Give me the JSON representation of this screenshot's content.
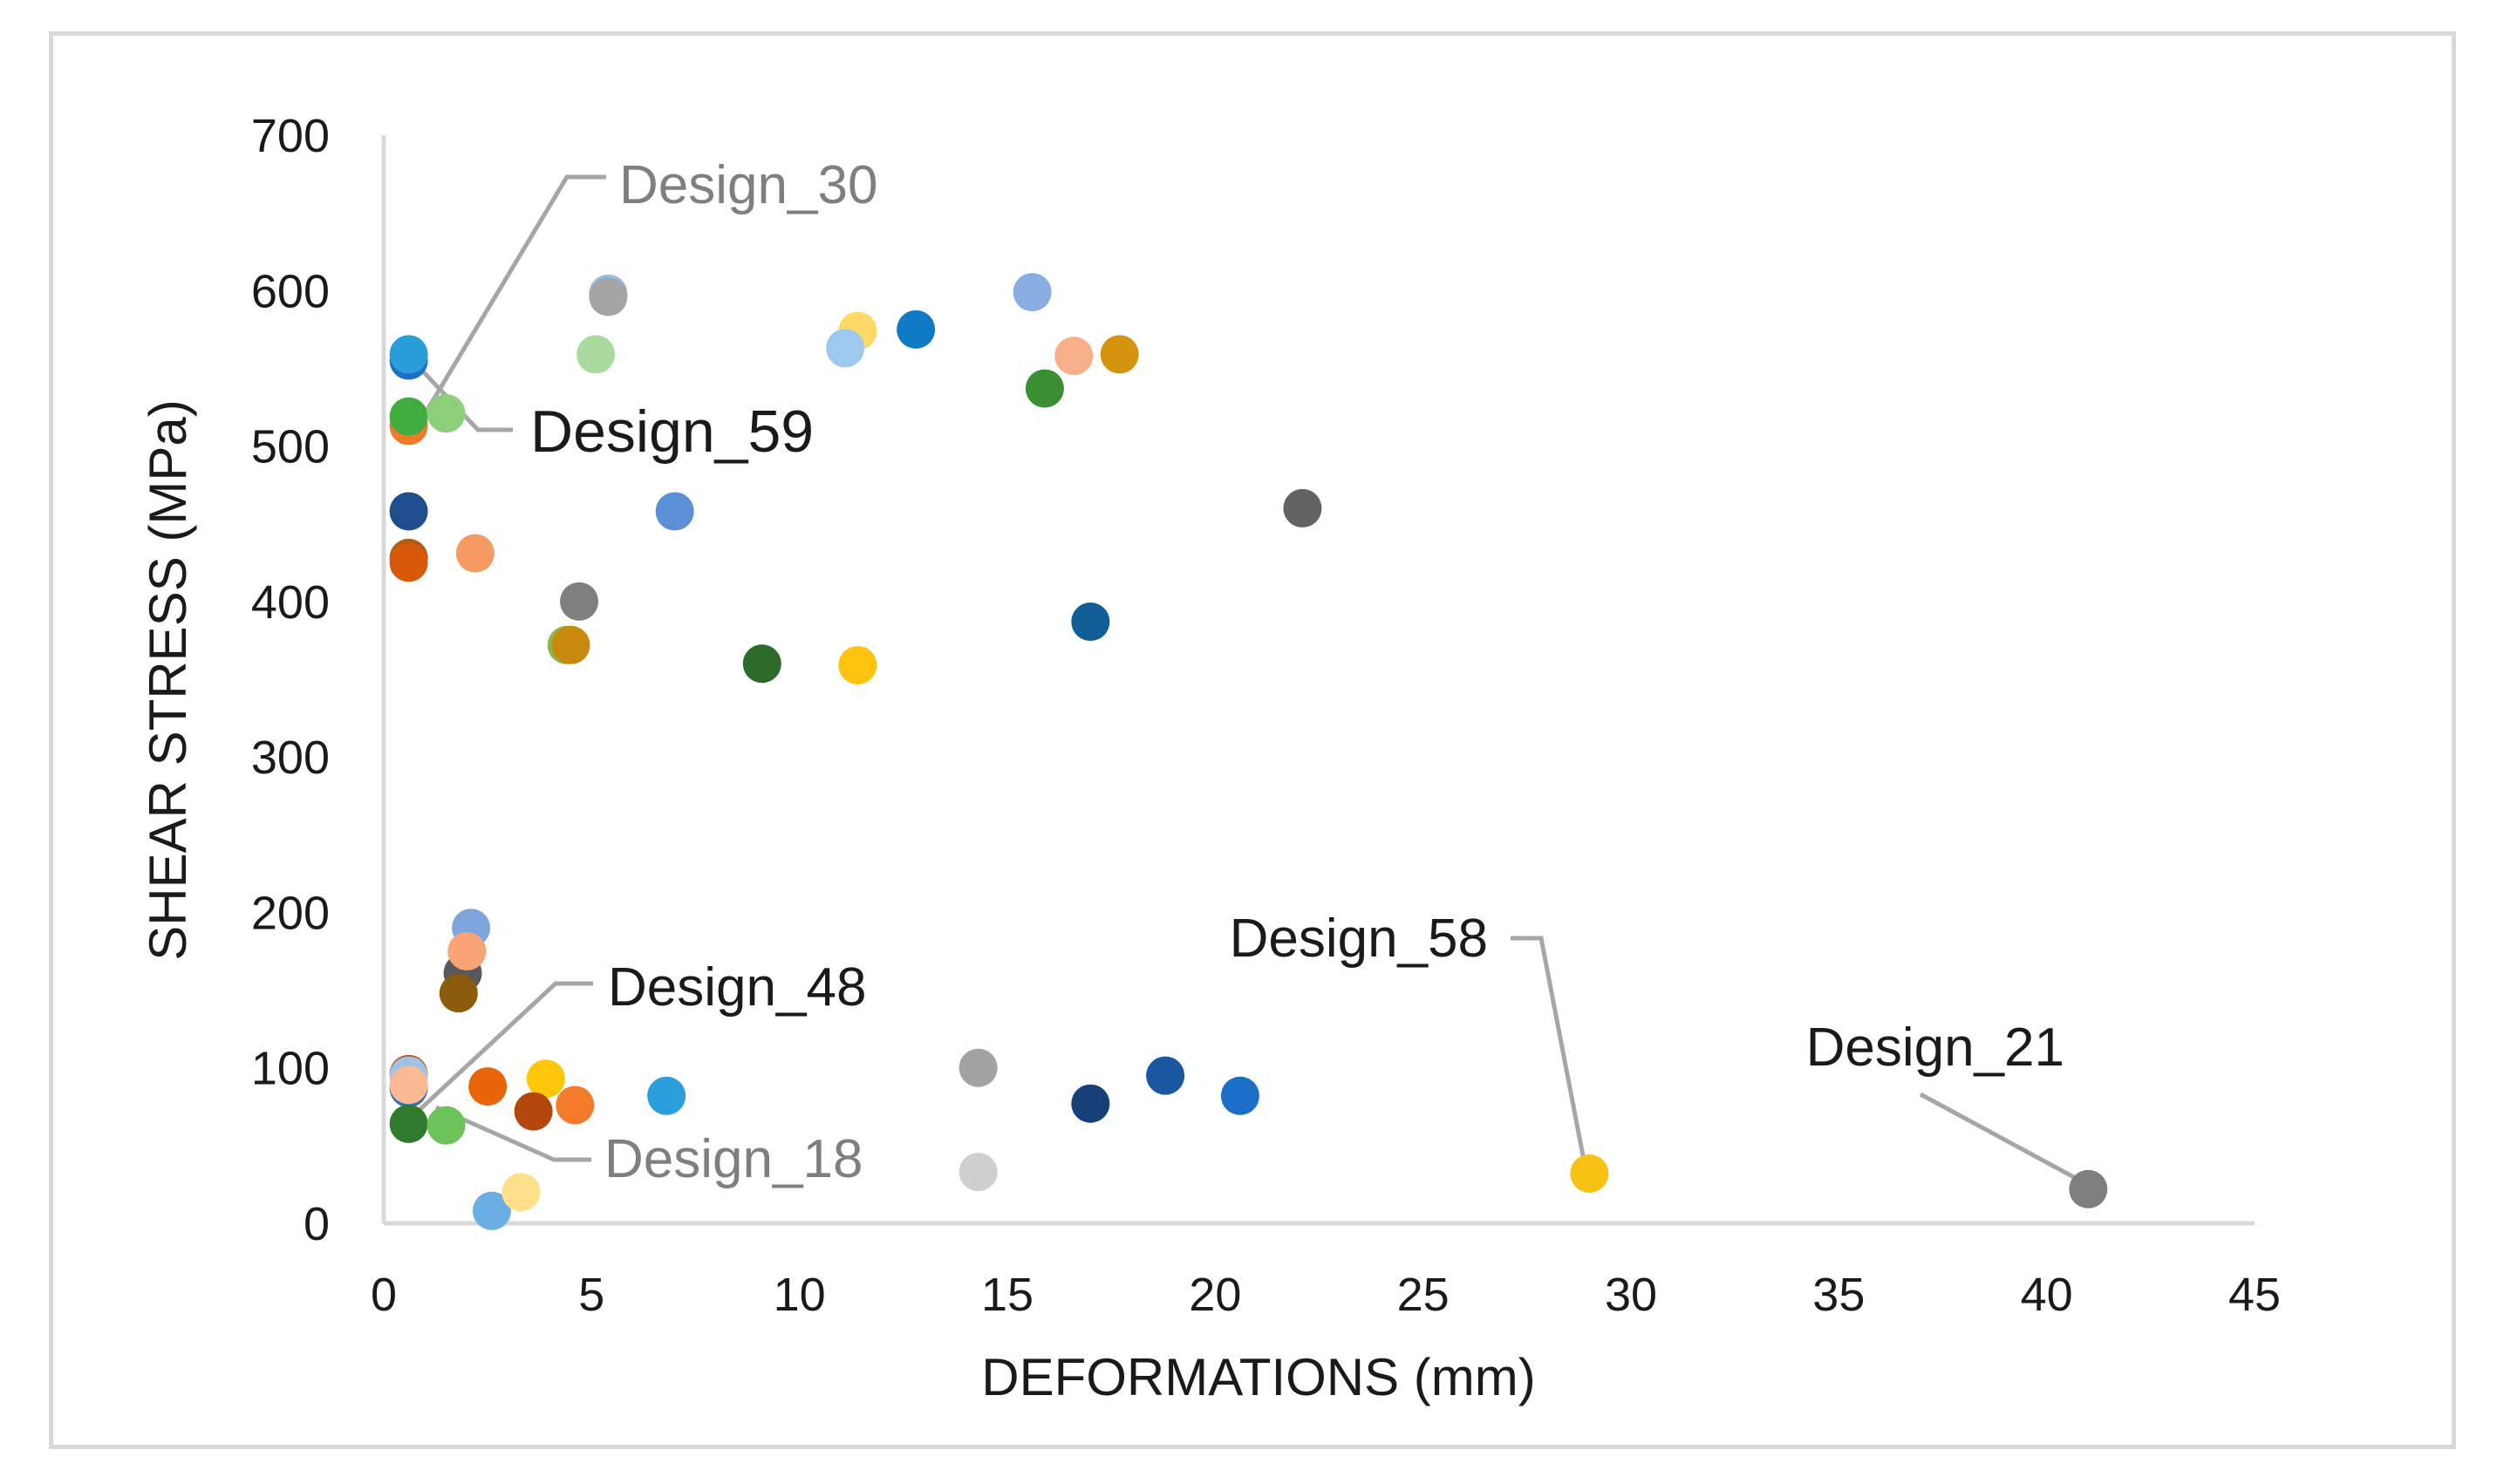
{
  "chart_data": {
    "type": "scatter",
    "title": "",
    "xlabel": "DEFORMATIONS (mm)",
    "ylabel": "SHEAR  STRESS   (MPa)",
    "xlim": [
      0,
      45
    ],
    "ylim": [
      0,
      700
    ],
    "xticks": [
      "0",
      "5",
      "10",
      "15",
      "20",
      "25",
      "30",
      "35",
      "40",
      "45"
    ],
    "yticks": [
      "0",
      "100",
      "200",
      "300",
      "400",
      "500",
      "600",
      "700"
    ],
    "grid": false,
    "legend": "none",
    "points": [
      {
        "x": 0.6,
        "y": 555,
        "color": "#1f6fc8"
      },
      {
        "x": 0.6,
        "y": 559,
        "color": "#2a9ed8"
      },
      {
        "x": 0.6,
        "y": 513,
        "color": "#ef7a2a"
      },
      {
        "x": 0.6,
        "y": 519,
        "color": "#3fae3f"
      },
      {
        "x": 1.5,
        "y": 521,
        "color": "#8ed07a"
      },
      {
        "x": 0.6,
        "y": 458,
        "color": "#1f4e8f"
      },
      {
        "x": 0.6,
        "y": 428,
        "color": "#b35a13"
      },
      {
        "x": 0.6,
        "y": 425,
        "color": "#d95a0b"
      },
      {
        "x": 2.2,
        "y": 431,
        "color": "#f79a62"
      },
      {
        "x": 5.4,
        "y": 598,
        "color": "#8fbde6"
      },
      {
        "x": 5.4,
        "y": 596,
        "color": "#a5a5a5"
      },
      {
        "x": 5.1,
        "y": 559,
        "color": "#a9dc9c"
      },
      {
        "x": 7.0,
        "y": 458,
        "color": "#5b8fd6"
      },
      {
        "x": 4.7,
        "y": 400,
        "color": "#7f7f7f"
      },
      {
        "x": 4.4,
        "y": 372,
        "color": "#8ab84a"
      },
      {
        "x": 4.5,
        "y": 372,
        "color": "#c88a0e"
      },
      {
        "x": 9.1,
        "y": 360,
        "color": "#2e6b2a"
      },
      {
        "x": 11.4,
        "y": 574,
        "color": "#ffd966"
      },
      {
        "x": 11.1,
        "y": 563,
        "color": "#9dc9ee"
      },
      {
        "x": 12.8,
        "y": 575,
        "color": "#0f7ac6"
      },
      {
        "x": 11.4,
        "y": 359,
        "color": "#fcc30f"
      },
      {
        "x": 15.6,
        "y": 599,
        "color": "#8aaee3"
      },
      {
        "x": 16.6,
        "y": 558,
        "color": "#f8b08a"
      },
      {
        "x": 17.7,
        "y": 559,
        "color": "#d4940e"
      },
      {
        "x": 15.9,
        "y": 537,
        "color": "#3a8f33"
      },
      {
        "x": 17.0,
        "y": 387,
        "color": "#0f5f96"
      },
      {
        "x": 22.1,
        "y": 460,
        "color": "#636363"
      },
      {
        "x": 2.1,
        "y": 190,
        "color": "#7ea6dc"
      },
      {
        "x": 1.9,
        "y": 161,
        "color": "#595959"
      },
      {
        "x": 2.0,
        "y": 175,
        "color": "#f9a477"
      },
      {
        "x": 1.8,
        "y": 148,
        "color": "#8a5c0c"
      },
      {
        "x": 0.6,
        "y": 96,
        "color": "#c45011"
      },
      {
        "x": 0.6,
        "y": 95,
        "color": "#9dc3e6"
      },
      {
        "x": 0.6,
        "y": 87,
        "color": "#2f6fb8"
      },
      {
        "x": 0.6,
        "y": 89,
        "color": "#fbb994"
      },
      {
        "x": 0.6,
        "y": 64,
        "color": "#2f7a2c"
      },
      {
        "x": 1.5,
        "y": 63,
        "color": "#6cc35a"
      },
      {
        "x": 2.5,
        "y": 88,
        "color": "#e8650a"
      },
      {
        "x": 3.9,
        "y": 93,
        "color": "#ffc70a"
      },
      {
        "x": 3.6,
        "y": 72,
        "color": "#b4480c"
      },
      {
        "x": 4.6,
        "y": 76,
        "color": "#f57b2c"
      },
      {
        "x": 6.8,
        "y": 82,
        "color": "#2b9fdc"
      },
      {
        "x": 2.6,
        "y": 8,
        "color": "#6aaee4"
      },
      {
        "x": 3.3,
        "y": 20,
        "color": "#ffe08a"
      },
      {
        "x": 14.3,
        "y": 100,
        "color": "#a3a3a3"
      },
      {
        "x": 14.3,
        "y": 33,
        "color": "#cfcfcf"
      },
      {
        "x": 17.0,
        "y": 77,
        "color": "#173f78"
      },
      {
        "x": 18.8,
        "y": 95,
        "color": "#1a57a0"
      },
      {
        "x": 20.6,
        "y": 82,
        "color": "#1c6fc9"
      },
      {
        "x": 29.0,
        "y": 32,
        "color": "#f8c215"
      },
      {
        "x": 41.0,
        "y": 22,
        "color": "#7f7f7f"
      }
    ],
    "annotations": [
      {
        "text": "Design_30",
        "x": 0.6,
        "y": 555,
        "color": "#7f7f7f"
      },
      {
        "text": "Design_59",
        "x": 0.6,
        "y": 555,
        "color": "#1a1a1a"
      },
      {
        "text": "Design_48",
        "x": 0.6,
        "y": 64,
        "color": "#1a1a1a"
      },
      {
        "text": "Design_18",
        "x": 1.5,
        "y": 63,
        "color": "#7f7f7f"
      },
      {
        "text": "Design_58",
        "x": 29.0,
        "y": 32,
        "color": "#1a1a1a"
      },
      {
        "text": "Design_21",
        "x": 41.0,
        "y": 22,
        "color": "#1a1a1a"
      }
    ]
  }
}
